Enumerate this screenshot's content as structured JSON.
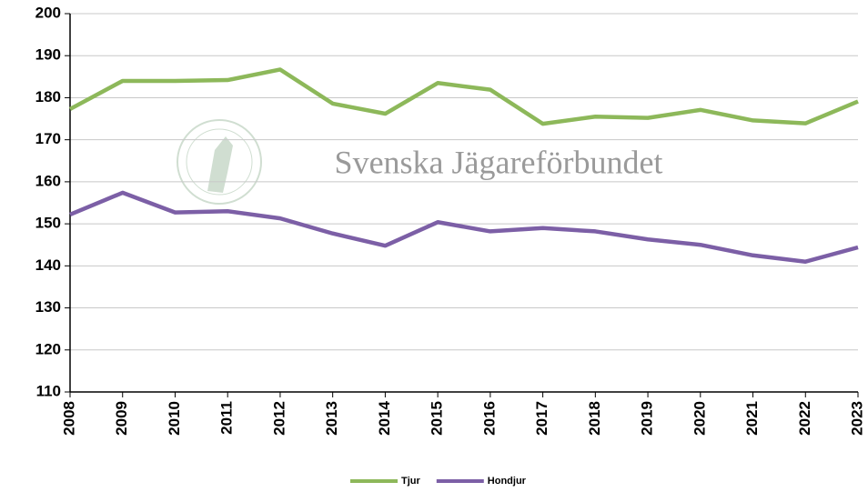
{
  "chart_data": {
    "type": "line",
    "watermark": "Svenska Jägareförbundet",
    "x": [
      2008,
      2009,
      2010,
      2011,
      2012,
      2013,
      2014,
      2015,
      2016,
      2017,
      2018,
      2019,
      2020,
      2021,
      2022,
      2023
    ],
    "series": [
      {
        "name": "Tjur",
        "color": "#8db85a",
        "values": [
          177.3,
          184.0,
          184.0,
          184.2,
          186.7,
          178.6,
          176.2,
          183.5,
          181.9,
          173.8,
          175.5,
          175.2,
          177.1,
          174.6,
          173.9,
          179.1
        ]
      },
      {
        "name": "Hondjur",
        "color": "#7c5fa6",
        "values": [
          152.2,
          157.4,
          152.7,
          153.0,
          151.3,
          147.7,
          144.8,
          150.4,
          148.2,
          149.0,
          148.2,
          146.3,
          145.0,
          142.5,
          141.0,
          144.4
        ]
      }
    ],
    "xlim": [
      2008,
      2023
    ],
    "xticks": [
      2008,
      2009,
      2010,
      2011,
      2012,
      2013,
      2014,
      2015,
      2016,
      2017,
      2018,
      2019,
      2020,
      2021,
      2022,
      2023
    ],
    "ylim": [
      110,
      200
    ],
    "yticks": [
      110,
      120,
      130,
      140,
      150,
      160,
      170,
      180,
      190,
      200
    ],
    "grid": true,
    "legend": "bottom"
  }
}
